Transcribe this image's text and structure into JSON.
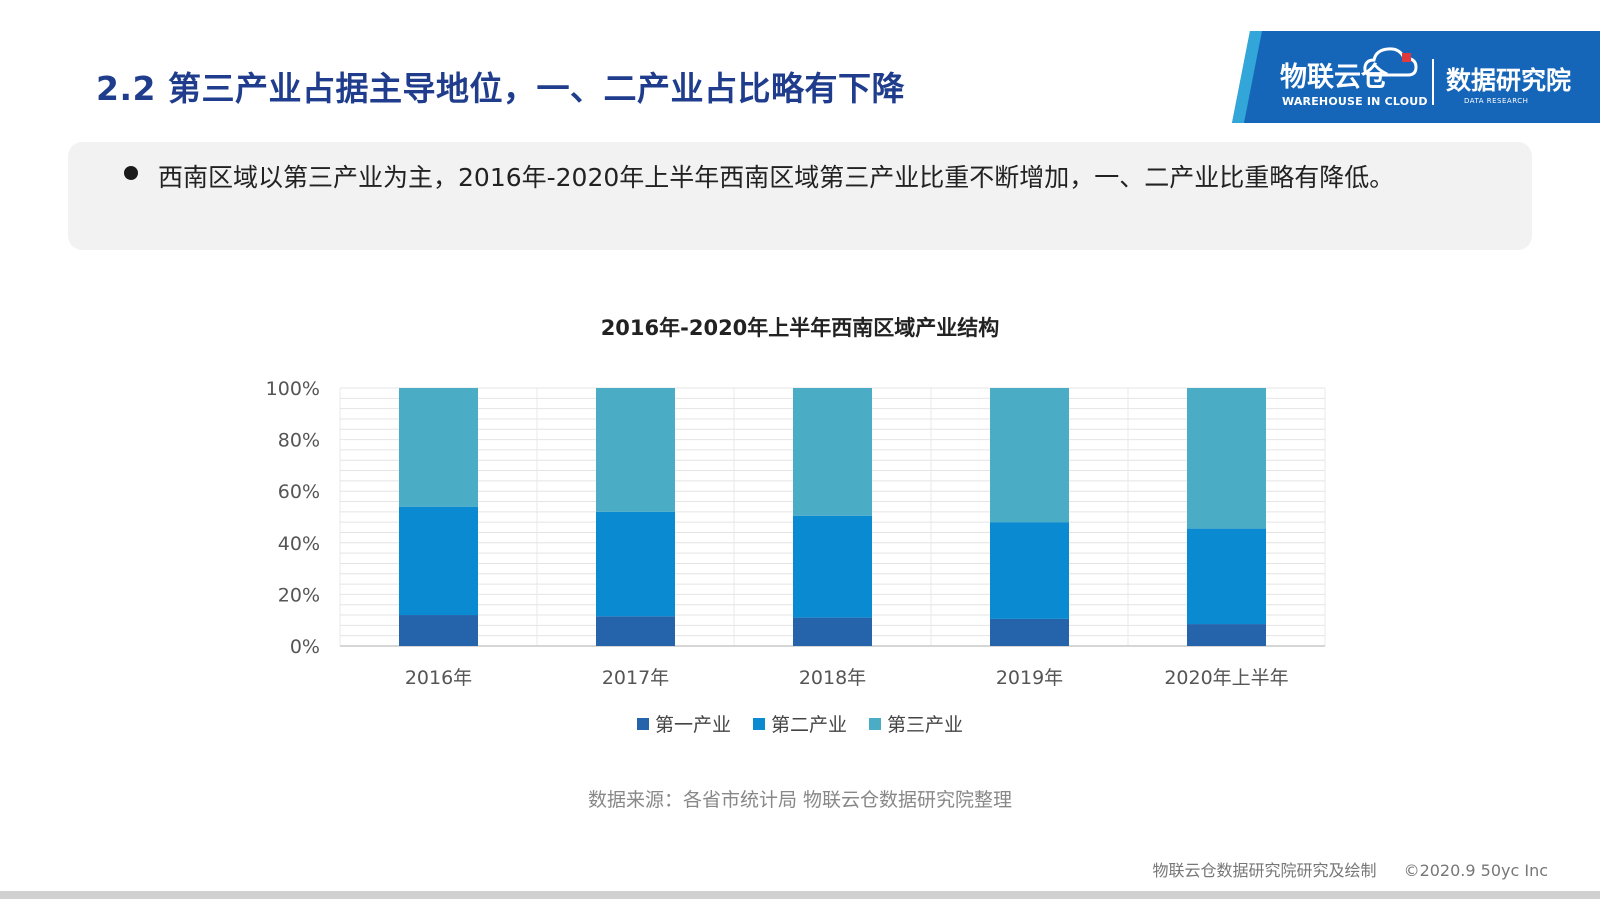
{
  "header": {
    "title": "2.2 第三产业占据主导地位，一、二产业占比略有下降"
  },
  "logo": {
    "brand": "物联云仓",
    "brand_en": "WAREHOUSE IN CLOUD",
    "research": "数据研究院",
    "research_en": "DATA RESEARCH"
  },
  "summary": {
    "text": "西南区域以第三产业为主，2016年-2020年上半年西南区域第三产业比重不断增加，一、二产业比重略有降低。"
  },
  "chart_data": {
    "type": "bar",
    "stacked": true,
    "title": "2016年-2020年上半年西南区域产业结构",
    "categories": [
      "2016年",
      "2017年",
      "2018年",
      "2019年",
      "2020年上半年"
    ],
    "series": [
      {
        "name": "第一产业",
        "color": "#2563ab",
        "values": [
          12,
          11.5,
          11,
          10.5,
          8.5
        ]
      },
      {
        "name": "第二产业",
        "color": "#0a8ad0",
        "values": [
          42,
          40.5,
          39.5,
          37.5,
          37
        ]
      },
      {
        "name": "第三产业",
        "color": "#4bacc6",
        "values": [
          46,
          48,
          49.5,
          52,
          54.5
        ]
      }
    ],
    "ylim": [
      0,
      100
    ],
    "yticks": [
      "0%",
      "20%",
      "40%",
      "60%",
      "80%",
      "100%"
    ],
    "grid": true,
    "legend": "bottom"
  },
  "source": {
    "text": "数据来源：各省市统计局 物联云仓数据研究院整理"
  },
  "footer": {
    "credit": "物联云仓数据研究院研究及绘制",
    "copyright": "©2020.9 50yc Inc"
  }
}
